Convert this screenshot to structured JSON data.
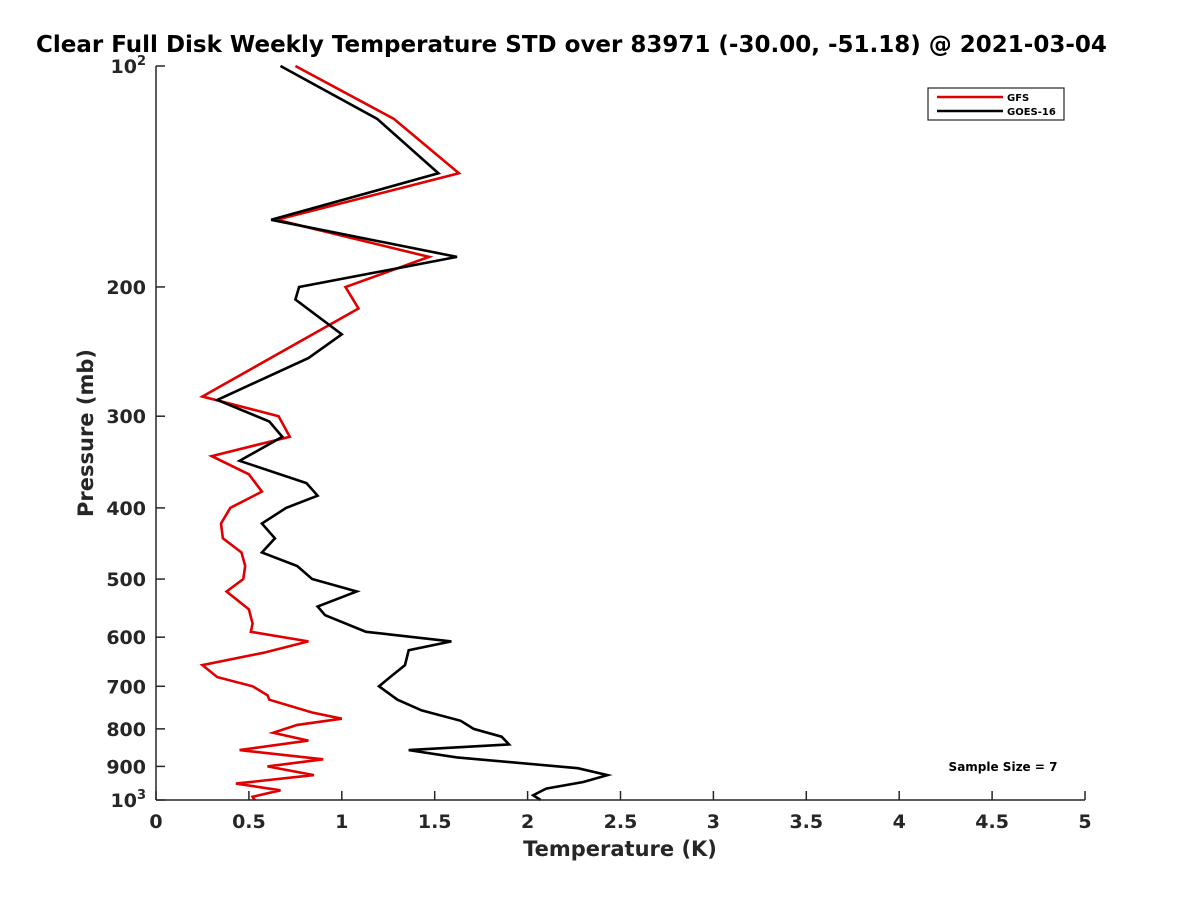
{
  "chart_data": {
    "type": "line",
    "title": "Clear Full Disk Weekly Temperature STD over 83971 (-30.00, -51.18) @ 2021-03-04",
    "xlabel": "Temperature (K)",
    "ylabel": "Pressure (mb)",
    "xlim": [
      0,
      5
    ],
    "ylim": [
      100,
      1000
    ],
    "y_scale": "log",
    "y_reversed": true,
    "grid": false,
    "legend_position": "top-right",
    "x_ticks": [
      "0",
      "0.5",
      "1",
      "1.5",
      "2",
      "2.5",
      "3",
      "3.5",
      "4",
      "4.5",
      "5"
    ],
    "y_ticks": [
      {
        "value": 100,
        "base": "10",
        "exp": "2"
      },
      {
        "value": 200,
        "label": "200"
      },
      {
        "value": 300,
        "label": "300"
      },
      {
        "value": 400,
        "label": "400"
      },
      {
        "value": 500,
        "label": "500"
      },
      {
        "value": 600,
        "label": "600"
      },
      {
        "value": 700,
        "label": "700"
      },
      {
        "value": 800,
        "label": "800"
      },
      {
        "value": 900,
        "label": "900"
      },
      {
        "value": 1000,
        "base": "10",
        "exp": "3"
      }
    ],
    "annotation": "Sample Size = 7",
    "series": [
      {
        "name": "GFS",
        "color": "#e00000",
        "points": [
          [
            0.75,
            100
          ],
          [
            1.28,
            118
          ],
          [
            1.63,
            140
          ],
          [
            0.65,
            162
          ],
          [
            1.47,
            182
          ],
          [
            1.02,
            200
          ],
          [
            1.09,
            214
          ],
          [
            0.25,
            282
          ],
          [
            0.66,
            300
          ],
          [
            0.72,
            320
          ],
          [
            0.3,
            340
          ],
          [
            0.5,
            360
          ],
          [
            0.57,
            380
          ],
          [
            0.4,
            400
          ],
          [
            0.35,
            420
          ],
          [
            0.36,
            440
          ],
          [
            0.46,
            460
          ],
          [
            0.48,
            480
          ],
          [
            0.47,
            500
          ],
          [
            0.38,
            520
          ],
          [
            0.5,
            550
          ],
          [
            0.52,
            575
          ],
          [
            0.51,
            590
          ],
          [
            0.82,
            608
          ],
          [
            0.58,
            630
          ],
          [
            0.25,
            655
          ],
          [
            0.33,
            680
          ],
          [
            0.52,
            700
          ],
          [
            0.6,
            720
          ],
          [
            0.61,
            730
          ],
          [
            0.84,
            760
          ],
          [
            1.0,
            775
          ],
          [
            0.76,
            790
          ],
          [
            0.63,
            810
          ],
          [
            0.82,
            830
          ],
          [
            0.45,
            855
          ],
          [
            0.9,
            880
          ],
          [
            0.6,
            900
          ],
          [
            0.85,
            925
          ],
          [
            0.43,
            950
          ],
          [
            0.67,
            970
          ],
          [
            0.52,
            990
          ],
          [
            0.53,
            1000
          ]
        ]
      },
      {
        "name": "GOES-16",
        "color": "#000000",
        "points": [
          [
            0.67,
            100
          ],
          [
            1.19,
            118
          ],
          [
            1.52,
            140
          ],
          [
            0.62,
            162
          ],
          [
            1.62,
            182
          ],
          [
            0.77,
            200
          ],
          [
            0.75,
            208
          ],
          [
            1.0,
            232
          ],
          [
            0.82,
            250
          ],
          [
            0.33,
            285
          ],
          [
            0.61,
            305
          ],
          [
            0.68,
            320
          ],
          [
            0.45,
            345
          ],
          [
            0.81,
            370
          ],
          [
            0.87,
            385
          ],
          [
            0.7,
            400
          ],
          [
            0.57,
            420
          ],
          [
            0.64,
            440
          ],
          [
            0.57,
            460
          ],
          [
            0.76,
            480
          ],
          [
            0.84,
            500
          ],
          [
            1.08,
            520
          ],
          [
            0.87,
            545
          ],
          [
            0.91,
            560
          ],
          [
            1.13,
            590
          ],
          [
            1.59,
            608
          ],
          [
            1.36,
            625
          ],
          [
            1.34,
            655
          ],
          [
            1.26,
            680
          ],
          [
            1.2,
            700
          ],
          [
            1.3,
            730
          ],
          [
            1.43,
            755
          ],
          [
            1.64,
            780
          ],
          [
            1.71,
            800
          ],
          [
            1.86,
            820
          ],
          [
            1.9,
            840
          ],
          [
            1.36,
            855
          ],
          [
            1.62,
            875
          ],
          [
            2.27,
            905
          ],
          [
            2.43,
            925
          ],
          [
            2.3,
            945
          ],
          [
            2.1,
            965
          ],
          [
            2.03,
            985
          ],
          [
            2.07,
            1000
          ]
        ]
      }
    ]
  }
}
